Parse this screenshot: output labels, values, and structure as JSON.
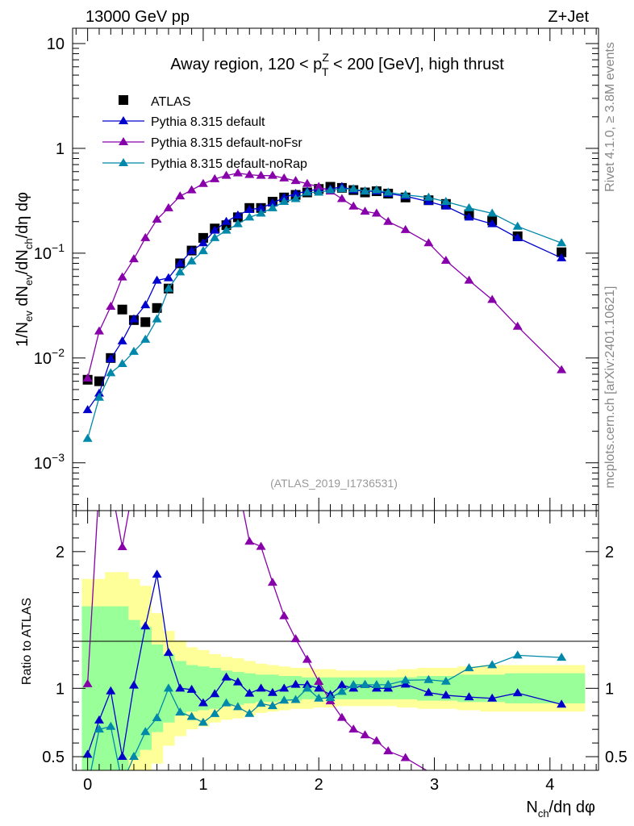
{
  "header": {
    "left": "13000 GeV pp",
    "right": "Z+Jet"
  },
  "chart_data": {
    "type": "line",
    "title": "Away region, 120 < pTZ < 200 [GeV], high thrust",
    "title_parts": {
      "prefix": "Away region, 120 < p",
      "sup": "Z",
      "sub": "T",
      "suffix": " < 200 [GeV], high thrust"
    },
    "ylabel": "1/Nev dNev/dNch/dη dφ",
    "ylabel_parts": {
      "a": "1/N",
      "b": "ev",
      "c": " dN",
      "d": "ev",
      "e": "/dN",
      "f": "ch",
      "g": "/dη dφ"
    },
    "xlabel": "Nch/dη dφ",
    "xlabel_parts": {
      "a": "N",
      "b": "ch",
      "c": "/dη dφ"
    },
    "ratio_ylabel": "Ratio to ATLAS",
    "watermark": "(ATLAS_2019_I1736531)",
    "side_text_top": "Rivet 4.1.0, ≥ 3.8M events",
    "side_text_bottom": "mcplots.cern.ch [arXiv:2401.10621]",
    "xlim": [
      -0.13,
      4.42
    ],
    "ylim": [
      0.00035,
      14
    ],
    "ratio_ylim": [
      0.4,
      2.3
    ],
    "x_ticks": [
      "0",
      "1",
      "2",
      "3",
      "4"
    ],
    "y_ticks": [
      {
        "v": 10,
        "label": "10"
      },
      {
        "v": 1,
        "label": "1"
      },
      {
        "v": 0.1,
        "base": "10",
        "exp": "−1"
      },
      {
        "v": 0.01,
        "base": "10",
        "exp": "−2"
      },
      {
        "v": 0.001,
        "base": "10",
        "exp": "−3"
      }
    ],
    "ratio_ticks": [
      {
        "v": 2,
        "label": "2"
      },
      {
        "v": 1,
        "label": "1"
      },
      {
        "v": 0.5,
        "label": "0.5"
      }
    ],
    "x": [
      0.0,
      0.1,
      0.2,
      0.3,
      0.4,
      0.5,
      0.6,
      0.7,
      0.8,
      0.9,
      1.0,
      1.1,
      1.2,
      1.3,
      1.4,
      1.5,
      1.6,
      1.7,
      1.8,
      1.9,
      2.0,
      2.1,
      2.2,
      2.3,
      2.4,
      2.5,
      2.6,
      2.75,
      2.95,
      3.1,
      3.3,
      3.5,
      3.72,
      4.1
    ],
    "series": [
      {
        "name": "ATLAS",
        "color": "#000000",
        "marker": "square",
        "values": [
          0.0062,
          0.006,
          0.01,
          0.029,
          0.023,
          0.022,
          0.03,
          0.046,
          0.08,
          0.106,
          0.14,
          0.172,
          0.185,
          0.22,
          0.27,
          0.27,
          0.31,
          0.34,
          0.36,
          0.38,
          0.41,
          0.43,
          0.42,
          0.4,
          0.38,
          0.39,
          0.37,
          0.34,
          0.32,
          0.295,
          0.235,
          0.205,
          0.145,
          0.102
        ]
      },
      {
        "name": "Pythia 8.315 default",
        "color": "#0000cc",
        "marker": "triangle",
        "values": [
          0.0032,
          0.0046,
          0.0098,
          0.0145,
          0.0235,
          0.032,
          0.055,
          0.058,
          0.08,
          0.105,
          0.125,
          0.165,
          0.2,
          0.23,
          0.26,
          0.27,
          0.3,
          0.34,
          0.37,
          0.39,
          0.41,
          0.41,
          0.43,
          0.4,
          0.39,
          0.39,
          0.37,
          0.35,
          0.31,
          0.28,
          0.22,
          0.19,
          0.14,
          0.09
        ]
      },
      {
        "name": "Pythia 8.315 default-noFsr",
        "color": "#8800aa",
        "marker": "triangle",
        "values": [
          0.0064,
          0.018,
          0.031,
          0.059,
          0.088,
          0.14,
          0.21,
          0.27,
          0.35,
          0.4,
          0.46,
          0.51,
          0.55,
          0.58,
          0.56,
          0.55,
          0.55,
          0.52,
          0.49,
          0.46,
          0.43,
          0.39,
          0.33,
          0.28,
          0.25,
          0.24,
          0.2,
          0.167,
          0.125,
          0.085,
          0.055,
          0.036,
          0.02,
          0.0077
        ]
      },
      {
        "name": "Pythia 8.315 default-noRap",
        "color": "#0088aa",
        "marker": "triangle",
        "values": [
          0.0017,
          0.0042,
          0.0072,
          0.0088,
          0.0115,
          0.015,
          0.0235,
          0.046,
          0.066,
          0.084,
          0.105,
          0.14,
          0.165,
          0.19,
          0.22,
          0.24,
          0.27,
          0.31,
          0.33,
          0.38,
          0.38,
          0.4,
          0.41,
          0.41,
          0.39,
          0.4,
          0.38,
          0.36,
          0.34,
          0.31,
          0.27,
          0.24,
          0.18,
          0.125
        ]
      }
    ],
    "bands": {
      "yellow_halfwidth": [
        0.8,
        0.8,
        0.85,
        0.85,
        0.8,
        0.75,
        0.55,
        0.42,
        0.35,
        0.3,
        0.28,
        0.25,
        0.23,
        0.22,
        0.2,
        0.18,
        0.17,
        0.16,
        0.15,
        0.15,
        0.14,
        0.14,
        0.13,
        0.13,
        0.13,
        0.13,
        0.13,
        0.14,
        0.15,
        0.15,
        0.16,
        0.17,
        0.17,
        0.17
      ],
      "green_halfwidth": [
        0.6,
        0.6,
        0.6,
        0.6,
        0.5,
        0.45,
        0.32,
        0.25,
        0.2,
        0.17,
        0.16,
        0.15,
        0.13,
        0.12,
        0.11,
        0.1,
        0.1,
        0.09,
        0.09,
        0.08,
        0.08,
        0.08,
        0.08,
        0.08,
        0.08,
        0.08,
        0.08,
        0.08,
        0.09,
        0.09,
        0.1,
        0.1,
        0.11,
        0.11
      ]
    }
  }
}
